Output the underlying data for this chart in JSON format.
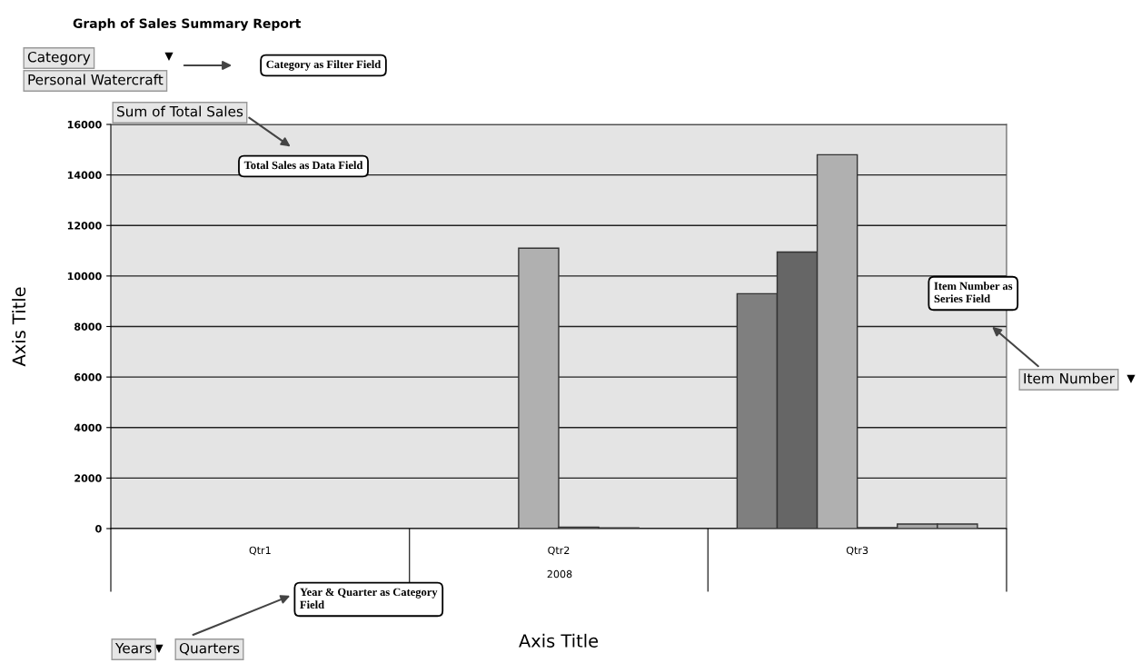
{
  "chart_data": {
    "type": "bar",
    "title": "Graph of Sales Summary Report",
    "xlabel": "Axis Title",
    "ylabel": "Axis Title",
    "categories": [
      "Qtr1",
      "Qtr2",
      "Qtr3"
    ],
    "series": [
      {
        "color": "#7f7f7f",
        "values": [
          null,
          null,
          9300
        ]
      },
      {
        "color": "#666666",
        "values": [
          null,
          null,
          10950
        ]
      },
      {
        "color": "#b0b0b0",
        "values": [
          null,
          11100,
          14800
        ]
      },
      {
        "color": "#909090",
        "values": [
          null,
          60,
          40
        ]
      },
      {
        "color": "#a8a8a8",
        "values": [
          null,
          30,
          180
        ]
      },
      {
        "color": "#b0b0b0",
        "values": [
          null,
          null,
          180
        ]
      }
    ],
    "ylim": [
      0,
      16000
    ],
    "yticks": [
      0,
      2000,
      4000,
      6000,
      8000,
      10000,
      12000,
      14000,
      16000
    ],
    "grid": "y",
    "legend": false,
    "annotations": [
      "Category",
      "Personal Watercraft",
      "Category as Filter Field",
      "Sum of Total Sales",
      "Total Sales as Data Field",
      "Item Number as\nSeries Field",
      "Item Number",
      "2008",
      "Year & Quarter as Category\nField",
      "Years",
      "Quarters"
    ]
  }
}
